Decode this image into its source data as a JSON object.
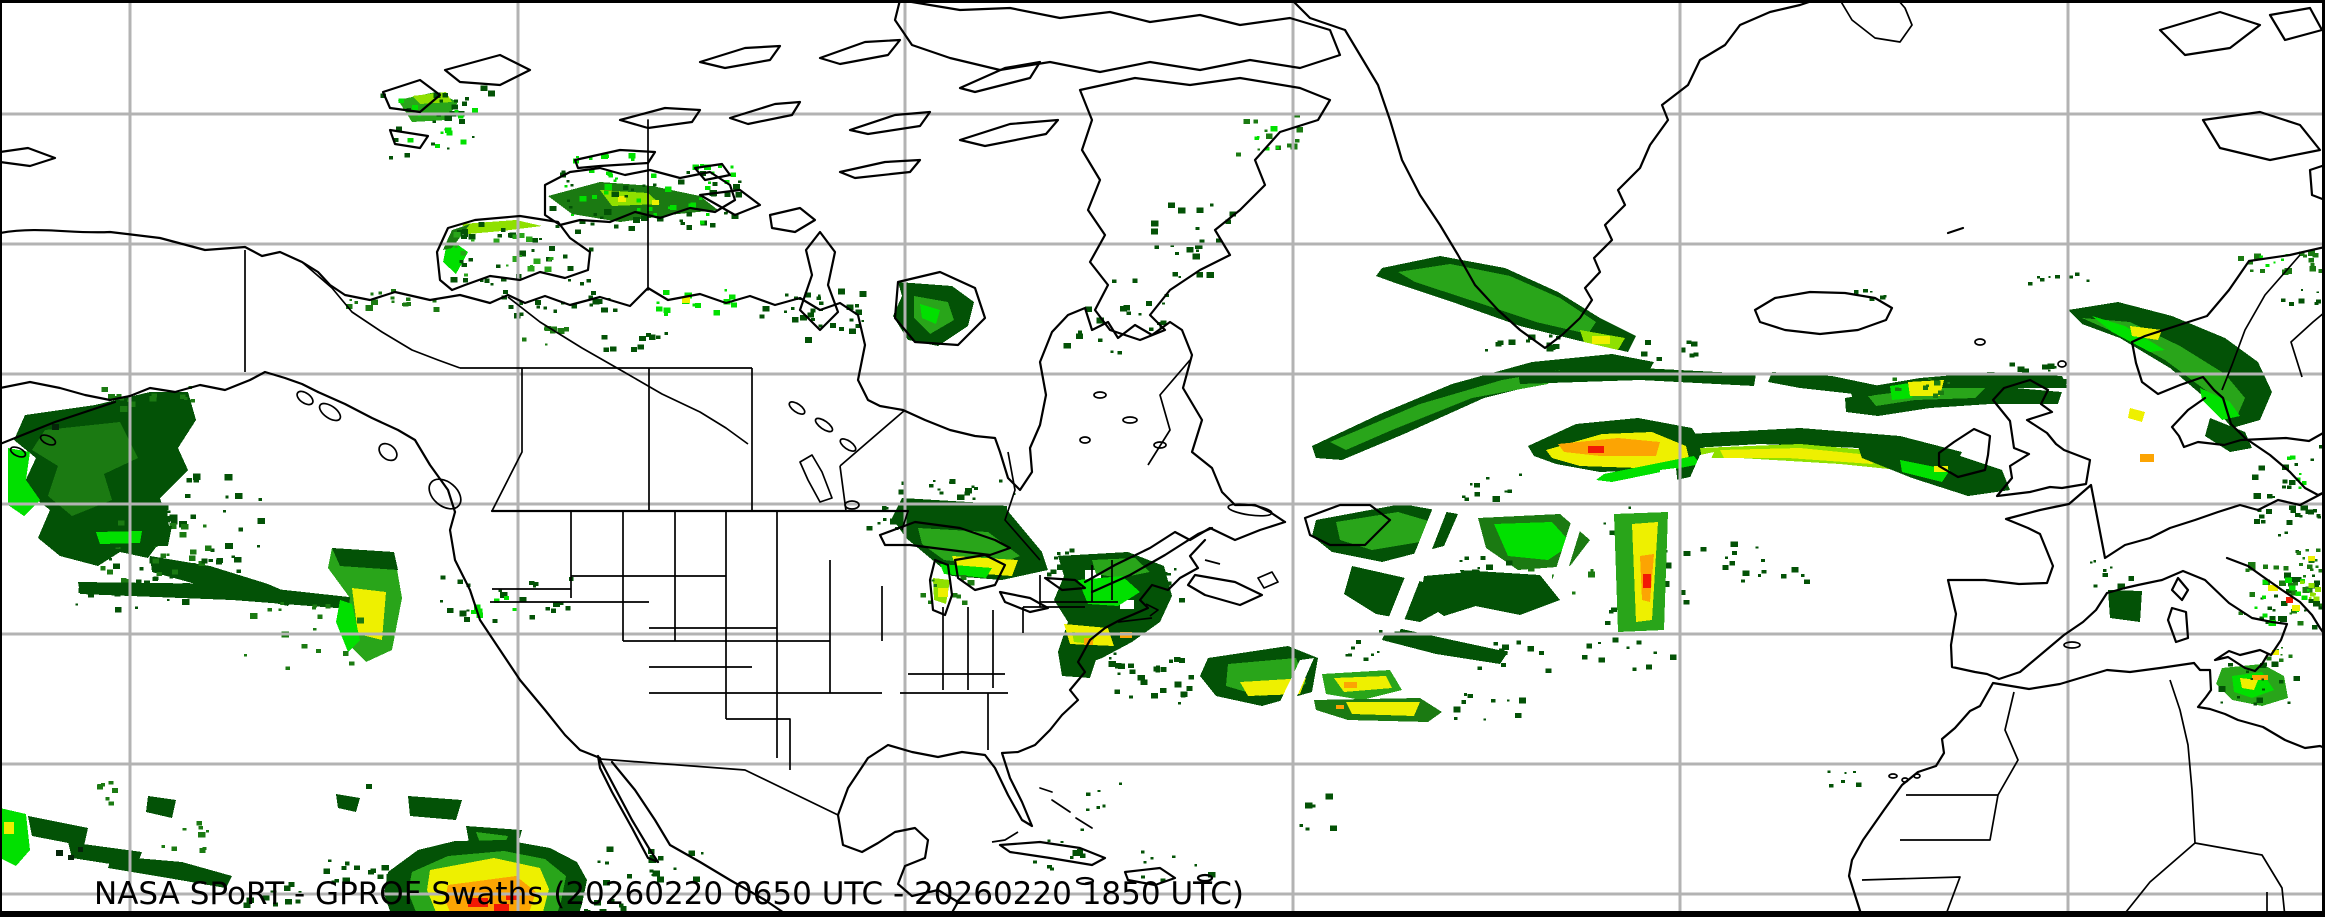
{
  "caption": {
    "text": "NASA SPoRT - GPROF Swaths (20260220 0650 UTC - 20260220 1850 UTC)",
    "source": "NASA SPoRT",
    "product": "GPROF Swaths",
    "period_start": "20260220 0650 UTC",
    "period_end": "20260220 1850 UTC"
  },
  "colors": {
    "bg": "#ffffff",
    "grid": "#b3b3b3",
    "coast": "#000000",
    "caption": "#000000",
    "g1": "#035206",
    "g2": "#1b7a12",
    "g3": "#29a51a",
    "g4": "#01e000",
    "g5": "#8fe000",
    "yl": "#eef000",
    "or": "#fca403",
    "rd": "#f21905",
    "vdark": "#05260a"
  }
}
